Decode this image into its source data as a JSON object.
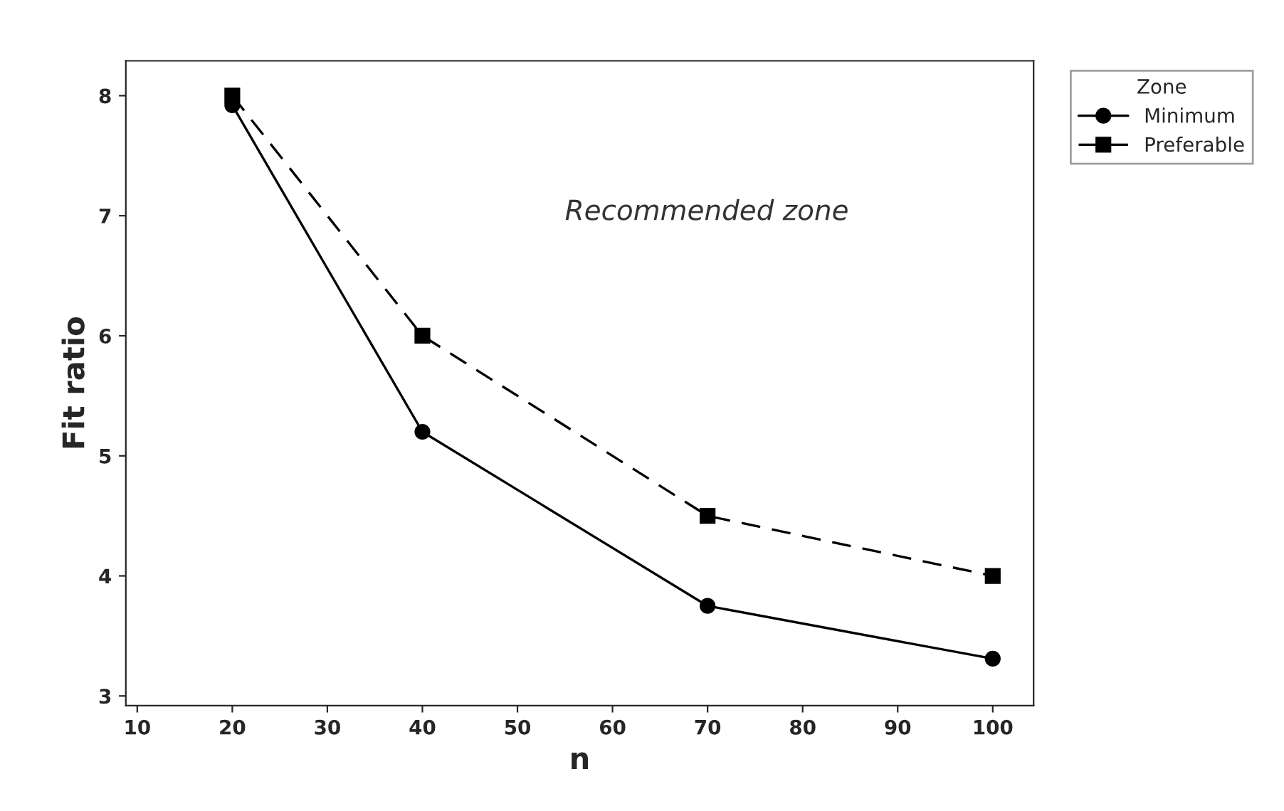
{
  "chart_data": {
    "type": "line",
    "xlabel": "n",
    "ylabel": "Fit ratio",
    "legend_title": "Zone",
    "legend": "top right",
    "grid": false,
    "x": [
      20,
      40,
      70,
      100
    ],
    "series": [
      {
        "name": "Minimum",
        "color": "#000000",
        "values": [
          7.92,
          5.2,
          3.75,
          3.31
        ],
        "marker": "circle",
        "line_style": "solid"
      },
      {
        "name": "Preferable",
        "color": "#000000",
        "values": [
          8,
          6,
          4.5,
          4
        ],
        "marker": "square",
        "line_style": "dashed"
      }
    ],
    "xlim": [
      8.8,
      104.3
    ],
    "xticks": [
      10,
      20,
      30,
      40,
      50,
      60,
      70,
      80,
      90,
      100
    ],
    "ylim": [
      2.92,
      8.29
    ],
    "yticks": [
      3,
      4,
      5,
      6,
      7,
      8
    ],
    "annotations": [
      "Recommended zone"
    ]
  }
}
